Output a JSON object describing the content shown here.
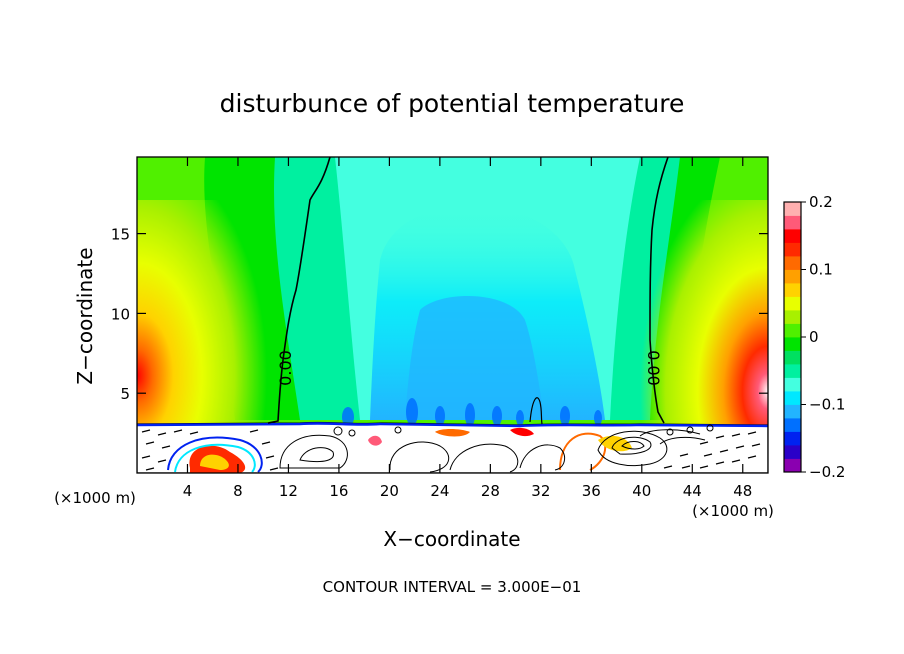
{
  "chart_data": {
    "type": "heatmap",
    "title": "disturbunce of potential temperature",
    "xlabel": "X−coordinate",
    "ylabel": "Z−coordinate",
    "x_unit_left": "(×1000 m)",
    "x_unit_right": "(×1000 m)",
    "xlim": [
      0,
      50
    ],
    "ylim": [
      0,
      19.8
    ],
    "x_ticks": [
      4,
      8,
      12,
      16,
      20,
      24,
      28,
      32,
      36,
      40,
      44,
      48
    ],
    "x_tick_labels": [
      "4",
      "8",
      "12",
      "16",
      "20",
      "24",
      "28",
      "32",
      "36",
      "40",
      "44",
      "48"
    ],
    "y_ticks": [
      5,
      10,
      15
    ],
    "y_tick_labels": [
      "5",
      "10",
      "15"
    ],
    "terrain_height": 3.0,
    "contour_labels": [
      "0.00",
      "0.00"
    ],
    "colorbar": {
      "min": -0.2,
      "max": 0.2,
      "tick_values": [
        0.2,
        0.1,
        0,
        -0.1,
        -0.2
      ],
      "tick_labels": [
        "0.2",
        "0.1",
        "0",
        "−0.1",
        "−0.2"
      ],
      "colors": [
        "#8a00b0",
        "#2a00c8",
        "#0022f0",
        "#0070ff",
        "#22b4ff",
        "#00e8ff",
        "#44ffe0",
        "#00f0a0",
        "#00e060",
        "#00e400",
        "#50f000",
        "#a8f000",
        "#e8ff00",
        "#ffd200",
        "#ffa000",
        "#ff6a00",
        "#ff2a00",
        "#ff0000",
        "#ff5a78",
        "#ffb0b0"
      ]
    },
    "footer": "CONTOUR INTERVAL = 3.000E−01"
  }
}
